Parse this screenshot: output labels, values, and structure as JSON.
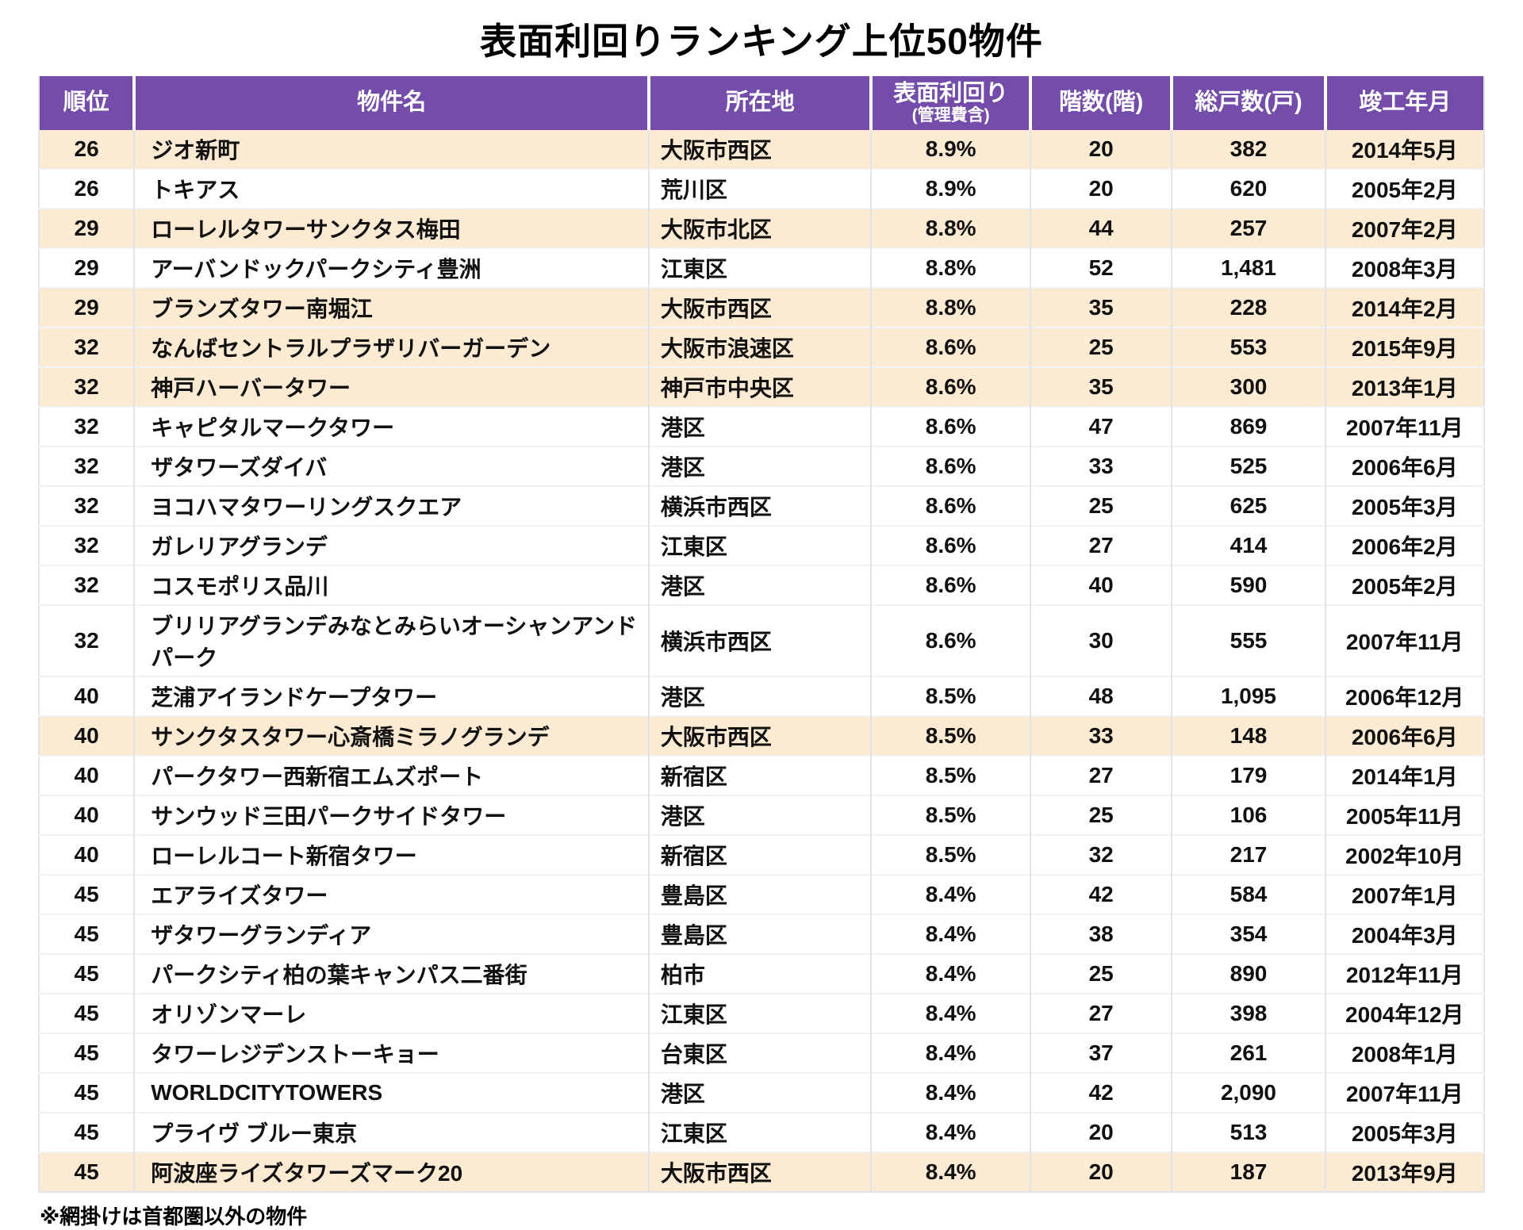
{
  "title": "表面利回りランキング上位50物件",
  "footnote": "※網掛けは首都圏以外の物件",
  "colors": {
    "header_bg": "#744CAA",
    "header_text": "#FFFFFF",
    "highlight_bg": "#FCEAD3",
    "row_bg": "#FFFFFF",
    "text": "#111111"
  },
  "table": {
    "columns": [
      {
        "key": "rank",
        "label": "順位"
      },
      {
        "key": "name",
        "label": "物件名"
      },
      {
        "key": "location",
        "label": "所在地"
      },
      {
        "key": "yield",
        "label": "表面利回り",
        "sublabel": "(管理費含)"
      },
      {
        "key": "floors",
        "label": "階数(階)"
      },
      {
        "key": "units",
        "label": "総戸数(戸)"
      },
      {
        "key": "completed",
        "label": "竣工年月"
      }
    ],
    "rows": [
      {
        "rank": "26",
        "name": "ジオ新町",
        "location": "大阪市西区",
        "yield": "8.9%",
        "floors": "20",
        "units": "382",
        "completed": "2014年5月",
        "outside_metro": true
      },
      {
        "rank": "26",
        "name": "トキアス",
        "location": "荒川区",
        "yield": "8.9%",
        "floors": "20",
        "units": "620",
        "completed": "2005年2月",
        "outside_metro": false
      },
      {
        "rank": "29",
        "name": "ローレルタワーサンクタス梅田",
        "location": "大阪市北区",
        "yield": "8.8%",
        "floors": "44",
        "units": "257",
        "completed": "2007年2月",
        "outside_metro": true
      },
      {
        "rank": "29",
        "name": "アーバンドックパークシティ豊洲",
        "location": "江東区",
        "yield": "8.8%",
        "floors": "52",
        "units": "1,481",
        "completed": "2008年3月",
        "outside_metro": false
      },
      {
        "rank": "29",
        "name": "ブランズタワー南堀江",
        "location": "大阪市西区",
        "yield": "8.8%",
        "floors": "35",
        "units": "228",
        "completed": "2014年2月",
        "outside_metro": true
      },
      {
        "rank": "32",
        "name": "なんばセントラルプラザリバーガーデン",
        "location": "大阪市浪速区",
        "yield": "8.6%",
        "floors": "25",
        "units": "553",
        "completed": "2015年9月",
        "outside_metro": true
      },
      {
        "rank": "32",
        "name": "神戸ハーバータワー",
        "location": "神戸市中央区",
        "yield": "8.6%",
        "floors": "35",
        "units": "300",
        "completed": "2013年1月",
        "outside_metro": true
      },
      {
        "rank": "32",
        "name": "キャピタルマークタワー",
        "location": "港区",
        "yield": "8.6%",
        "floors": "47",
        "units": "869",
        "completed": "2007年11月",
        "outside_metro": false
      },
      {
        "rank": "32",
        "name": "ザタワーズダイバ",
        "location": "港区",
        "yield": "8.6%",
        "floors": "33",
        "units": "525",
        "completed": "2006年6月",
        "outside_metro": false
      },
      {
        "rank": "32",
        "name": "ヨコハマタワーリングスクエア",
        "location": "横浜市西区",
        "yield": "8.6%",
        "floors": "25",
        "units": "625",
        "completed": "2005年3月",
        "outside_metro": false
      },
      {
        "rank": "32",
        "name": "ガレリアグランデ",
        "location": "江東区",
        "yield": "8.6%",
        "floors": "27",
        "units": "414",
        "completed": "2006年2月",
        "outside_metro": false
      },
      {
        "rank": "32",
        "name": "コスモポリス品川",
        "location": "港区",
        "yield": "8.6%",
        "floors": "40",
        "units": "590",
        "completed": "2005年2月",
        "outside_metro": false
      },
      {
        "rank": "32",
        "name": "ブリリアグランデみなとみらいオーシャンアンドパーク",
        "location": "横浜市西区",
        "yield": "8.6%",
        "floors": "30",
        "units": "555",
        "completed": "2007年11月",
        "outside_metro": false
      },
      {
        "rank": "40",
        "name": "芝浦アイランドケープタワー",
        "location": "港区",
        "yield": "8.5%",
        "floors": "48",
        "units": "1,095",
        "completed": "2006年12月",
        "outside_metro": false
      },
      {
        "rank": "40",
        "name": "サンクタスタワー心斎橋ミラノグランデ",
        "location": "大阪市西区",
        "yield": "8.5%",
        "floors": "33",
        "units": "148",
        "completed": "2006年6月",
        "outside_metro": true
      },
      {
        "rank": "40",
        "name": "パークタワー西新宿エムズポート",
        "location": "新宿区",
        "yield": "8.5%",
        "floors": "27",
        "units": "179",
        "completed": "2014年1月",
        "outside_metro": false
      },
      {
        "rank": "40",
        "name": "サンウッド三田パークサイドタワー",
        "location": "港区",
        "yield": "8.5%",
        "floors": "25",
        "units": "106",
        "completed": "2005年11月",
        "outside_metro": false
      },
      {
        "rank": "40",
        "name": "ローレルコート新宿タワー",
        "location": "新宿区",
        "yield": "8.5%",
        "floors": "32",
        "units": "217",
        "completed": "2002年10月",
        "outside_metro": false
      },
      {
        "rank": "45",
        "name": "エアライズタワー",
        "location": "豊島区",
        "yield": "8.4%",
        "floors": "42",
        "units": "584",
        "completed": "2007年1月",
        "outside_metro": false
      },
      {
        "rank": "45",
        "name": "ザタワーグランディア",
        "location": "豊島区",
        "yield": "8.4%",
        "floors": "38",
        "units": "354",
        "completed": "2004年3月",
        "outside_metro": false
      },
      {
        "rank": "45",
        "name": "パークシティ柏の葉キャンパス二番街",
        "location": "柏市",
        "yield": "8.4%",
        "floors": "25",
        "units": "890",
        "completed": "2012年11月",
        "outside_metro": false
      },
      {
        "rank": "45",
        "name": "オリゾンマーレ",
        "location": "江東区",
        "yield": "8.4%",
        "floors": "27",
        "units": "398",
        "completed": "2004年12月",
        "outside_metro": false
      },
      {
        "rank": "45",
        "name": "タワーレジデンストーキョー",
        "location": "台東区",
        "yield": "8.4%",
        "floors": "37",
        "units": "261",
        "completed": "2008年1月",
        "outside_metro": false
      },
      {
        "rank": "45",
        "name": "WORLDCITYTOWERS",
        "location": "港区",
        "yield": "8.4%",
        "floors": "42",
        "units": "2,090",
        "completed": "2007年11月",
        "outside_metro": false
      },
      {
        "rank": "45",
        "name": "プライヴ ブルー東京",
        "location": "江東区",
        "yield": "8.4%",
        "floors": "20",
        "units": "513",
        "completed": "2005年3月",
        "outside_metro": false
      },
      {
        "rank": "45",
        "name": "阿波座ライズタワーズマーク20",
        "location": "大阪市西区",
        "yield": "8.4%",
        "floors": "20",
        "units": "187",
        "completed": "2013年9月",
        "outside_metro": true
      }
    ]
  }
}
